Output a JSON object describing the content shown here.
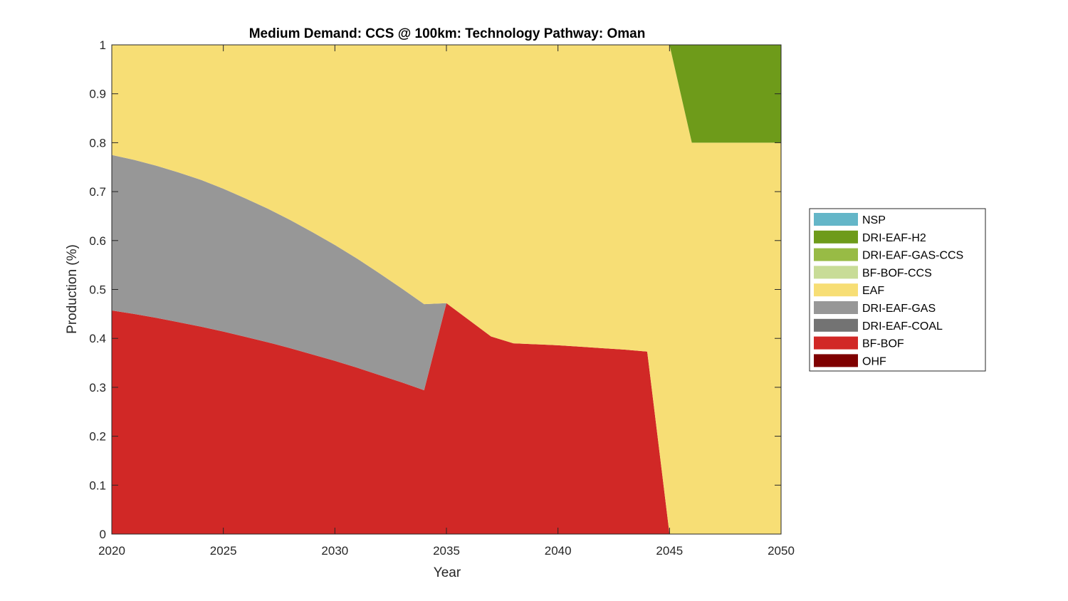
{
  "chart_data": {
    "type": "area",
    "stacked": true,
    "title": "Medium Demand: CCS @ 100km: Technology Pathway: Oman",
    "xlabel": "Year",
    "ylabel": "Production (%)",
    "xlim": [
      2020,
      2050
    ],
    "ylim": [
      0,
      1
    ],
    "xticks": [
      "2020",
      "2025",
      "2030",
      "2035",
      "2040",
      "2045",
      "2050"
    ],
    "yticks": [
      "0",
      "0.1",
      "0.2",
      "0.3",
      "0.4",
      "0.5",
      "0.6",
      "0.7",
      "0.8",
      "0.9",
      "1"
    ],
    "grid": false,
    "legend_position": "right",
    "x": [
      2020,
      2021,
      2022,
      2023,
      2024,
      2025,
      2026,
      2027,
      2028,
      2029,
      2030,
      2031,
      2032,
      2033,
      2034,
      2035,
      2036,
      2037,
      2038,
      2039,
      2040,
      2041,
      2042,
      2043,
      2044,
      2045,
      2046,
      2047,
      2048,
      2049,
      2050
    ],
    "series": [
      {
        "name": "OHF",
        "color": "#7f0000",
        "values": [
          0,
          0,
          0,
          0,
          0,
          0,
          0,
          0,
          0,
          0,
          0,
          0,
          0,
          0,
          0,
          0,
          0,
          0,
          0,
          0,
          0,
          0,
          0,
          0,
          0,
          0,
          0,
          0,
          0,
          0,
          0
        ]
      },
      {
        "name": "BF-BOF",
        "color": "#d12826",
        "values": [
          0.457,
          0.45,
          0.442,
          0.433,
          0.424,
          0.414,
          0.403,
          0.392,
          0.38,
          0.367,
          0.354,
          0.34,
          0.325,
          0.31,
          0.294,
          0.472,
          0.438,
          0.404,
          0.39,
          0.388,
          0.386,
          0.383,
          0.38,
          0.377,
          0.373,
          0,
          0,
          0,
          0,
          0,
          0
        ]
      },
      {
        "name": "DRI-EAF-COAL",
        "color": "#737373",
        "values": [
          0,
          0,
          0,
          0,
          0,
          0,
          0,
          0,
          0,
          0,
          0,
          0,
          0,
          0,
          0,
          0,
          0,
          0,
          0,
          0,
          0,
          0,
          0,
          0,
          0,
          0,
          0,
          0,
          0,
          0,
          0
        ]
      },
      {
        "name": "DRI-EAF-GAS",
        "color": "#979797",
        "values": [
          0.318,
          0.315,
          0.311,
          0.306,
          0.3,
          0.292,
          0.283,
          0.273,
          0.262,
          0.25,
          0.237,
          0.223,
          0.208,
          0.192,
          0.176,
          0,
          0,
          0,
          0,
          0,
          0,
          0,
          0,
          0,
          0,
          0,
          0,
          0,
          0,
          0,
          0
        ]
      },
      {
        "name": "EAF",
        "color": "#f7de75",
        "values": [
          0.225,
          0.235,
          0.247,
          0.261,
          0.276,
          0.294,
          0.314,
          0.335,
          0.358,
          0.383,
          0.409,
          0.437,
          0.467,
          0.498,
          0.53,
          0.528,
          0.562,
          0.596,
          0.61,
          0.612,
          0.614,
          0.617,
          0.62,
          0.623,
          0.627,
          1.0,
          0.8,
          0.8,
          0.8,
          0.8,
          0.8
        ]
      },
      {
        "name": "BF-BOF-CCS",
        "color": "#c8dc97",
        "values": [
          0,
          0,
          0,
          0,
          0,
          0,
          0,
          0,
          0,
          0,
          0,
          0,
          0,
          0,
          0,
          0,
          0,
          0,
          0,
          0,
          0,
          0,
          0,
          0,
          0,
          0,
          0,
          0,
          0,
          0,
          0
        ]
      },
      {
        "name": "DRI-EAF-GAS-CCS",
        "color": "#98bb45",
        "values": [
          0,
          0,
          0,
          0,
          0,
          0,
          0,
          0,
          0,
          0,
          0,
          0,
          0,
          0,
          0,
          0,
          0,
          0,
          0,
          0,
          0,
          0,
          0,
          0,
          0,
          0,
          0,
          0,
          0,
          0,
          0
        ]
      },
      {
        "name": "DRI-EAF-H2",
        "color": "#6e9b1a",
        "values": [
          0,
          0,
          0,
          0,
          0,
          0,
          0,
          0,
          0,
          0,
          0,
          0,
          0,
          0,
          0,
          0,
          0,
          0,
          0,
          0,
          0,
          0,
          0,
          0,
          0,
          0,
          0.2,
          0.2,
          0.2,
          0.2,
          0.2
        ]
      },
      {
        "name": "NSP",
        "color": "#64b6c8",
        "values": [
          0,
          0,
          0,
          0,
          0,
          0,
          0,
          0,
          0,
          0,
          0,
          0,
          0,
          0,
          0,
          0,
          0,
          0,
          0,
          0,
          0,
          0,
          0,
          0,
          0,
          0,
          0,
          0,
          0,
          0,
          0
        ]
      }
    ],
    "legend_order": [
      "NSP",
      "DRI-EAF-H2",
      "DRI-EAF-GAS-CCS",
      "BF-BOF-CCS",
      "EAF",
      "DRI-EAF-GAS",
      "DRI-EAF-COAL",
      "BF-BOF",
      "OHF"
    ]
  }
}
